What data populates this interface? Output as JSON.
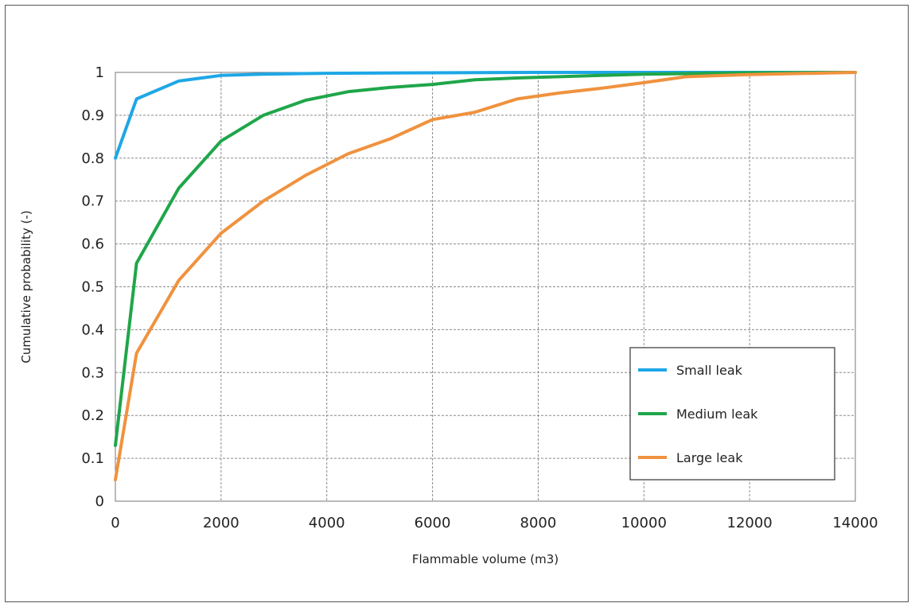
{
  "chart_data": {
    "type": "line",
    "title": "",
    "xlabel": "Flammable volume (m3)",
    "ylabel": "Cumulative probability (-)",
    "xlim": [
      0,
      14000
    ],
    "ylim": [
      0,
      1
    ],
    "x_ticks": [
      "0",
      "2000",
      "4000",
      "6000",
      "8000",
      "10000",
      "12000",
      "14000"
    ],
    "y_ticks": [
      "0",
      "0.1",
      "0.2",
      "0.3",
      "0.4",
      "0.5",
      "0.6",
      "0.7",
      "0.8",
      "0.9",
      "1"
    ],
    "grid": true,
    "legend_position": "lower-right",
    "series": [
      {
        "name": "Small leak",
        "color": "#1ea7e6",
        "points": [
          [
            0,
            0.8
          ],
          [
            400,
            0.938
          ],
          [
            1200,
            0.98
          ],
          [
            2000,
            0.993
          ],
          [
            2800,
            0.996
          ],
          [
            4000,
            0.998
          ],
          [
            6000,
            0.999
          ],
          [
            8000,
            1.0
          ],
          [
            10000,
            1.0
          ],
          [
            12000,
            1.0
          ],
          [
            14000,
            1.0
          ]
        ]
      },
      {
        "name": "Medium leak",
        "color": "#1fa64a",
        "points": [
          [
            0,
            0.13
          ],
          [
            400,
            0.555
          ],
          [
            1200,
            0.73
          ],
          [
            2000,
            0.84
          ],
          [
            2800,
            0.9
          ],
          [
            3600,
            0.935
          ],
          [
            4400,
            0.955
          ],
          [
            5200,
            0.965
          ],
          [
            6000,
            0.972
          ],
          [
            6800,
            0.983
          ],
          [
            7600,
            0.987
          ],
          [
            8400,
            0.99
          ],
          [
            9200,
            0.993
          ],
          [
            10000,
            0.996
          ],
          [
            12000,
            0.999
          ],
          [
            14000,
            1.0
          ]
        ]
      },
      {
        "name": "Large leak",
        "color": "#f0923e",
        "points": [
          [
            0,
            0.05
          ],
          [
            400,
            0.345
          ],
          [
            1200,
            0.515
          ],
          [
            2000,
            0.625
          ],
          [
            2800,
            0.7
          ],
          [
            3600,
            0.76
          ],
          [
            4400,
            0.81
          ],
          [
            5200,
            0.845
          ],
          [
            6000,
            0.89
          ],
          [
            6800,
            0.907
          ],
          [
            7600,
            0.938
          ],
          [
            8400,
            0.952
          ],
          [
            9200,
            0.963
          ],
          [
            10000,
            0.976
          ],
          [
            10800,
            0.99
          ],
          [
            12000,
            0.995
          ],
          [
            14000,
            1.0
          ]
        ]
      }
    ]
  }
}
